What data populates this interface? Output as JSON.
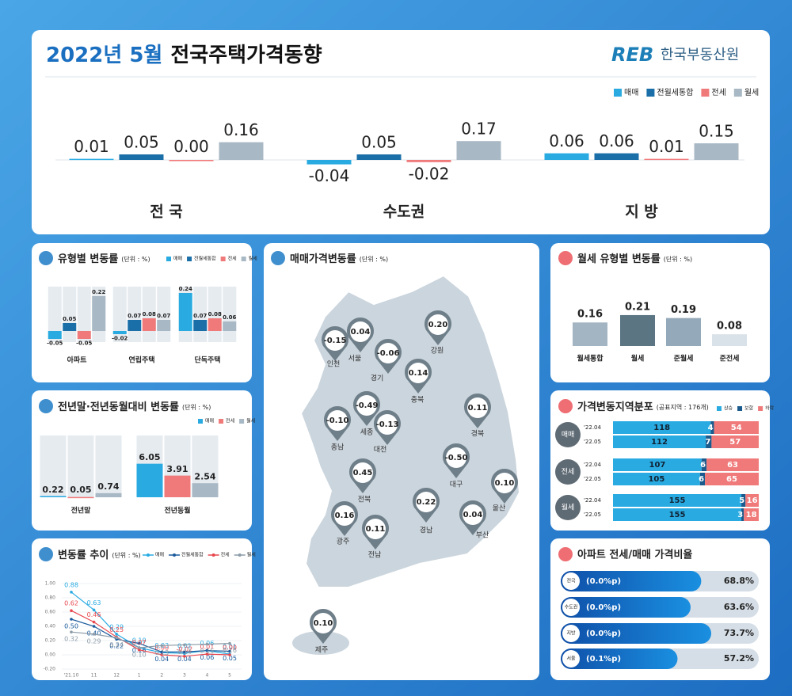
{
  "header": {
    "title_date": "2022년 5월",
    "title_main": "전국주택가격동향",
    "logo": "REB",
    "org": "한국부동산원"
  },
  "chart_data": [
    {
      "type": "bar",
      "categories": [
        "전 국",
        "수도권",
        "지 방"
      ],
      "series": [
        {
          "name": "매매",
          "color": "#29abe2",
          "values": [
            0.01,
            -0.04,
            0.06
          ],
          "value_labels": [
            "0.01",
            "-0.04",
            "0.06"
          ]
        },
        {
          "name": "전월세통합",
          "color": "#1a6fa8",
          "values": [
            0.05,
            0.05,
            0.06
          ],
          "value_labels": [
            "0.05",
            "0.05",
            "0.06"
          ]
        },
        {
          "name": "전세",
          "color": "#f07a7a",
          "values": [
            0.0,
            -0.02,
            0.01
          ],
          "value_labels": [
            "0.00",
            "-0.02",
            "0.01"
          ]
        },
        {
          "name": "월세",
          "color": "#a8b8c4",
          "values": [
            0.16,
            0.17,
            0.15
          ],
          "value_labels": [
            "0.16",
            "0.17",
            "0.15"
          ]
        }
      ]
    },
    {
      "type": "bar",
      "title": "유형별 변동률",
      "subtitle": "(단위 : %)",
      "categories": [
        "아파트",
        "연립주택",
        "단독주택"
      ],
      "series": [
        {
          "name": "매매",
          "color": "#29abe2",
          "values": [
            -0.05,
            -0.02,
            0.24
          ],
          "value_labels": [
            "-0.05",
            "-0.02",
            "0.24"
          ]
        },
        {
          "name": "전월세통합",
          "color": "#1a6fa8",
          "values": [
            0.05,
            0.07,
            0.07
          ],
          "value_labels": [
            "0.05",
            "0.07",
            "0.07"
          ]
        },
        {
          "name": "전세",
          "color": "#f07a7a",
          "values": [
            -0.05,
            0.08,
            0.08
          ],
          "value_labels": [
            "-0.05",
            "0.08",
            "0.08"
          ]
        },
        {
          "name": "월세",
          "color": "#a8b8c4",
          "values": [
            0.22,
            0.07,
            0.06
          ],
          "value_labels": [
            "0.22",
            "0.07",
            "0.06"
          ]
        }
      ]
    },
    {
      "type": "bar",
      "title": "전년말·전년동월대비 변동률",
      "subtitle": "(단위 : %)",
      "categories": [
        "전년말",
        "전년동월"
      ],
      "series": [
        {
          "name": "매매",
          "color": "#29abe2",
          "values": [
            0.22,
            6.05
          ],
          "value_labels": [
            "0.22",
            "6.05"
          ]
        },
        {
          "name": "전세",
          "color": "#f07a7a",
          "values": [
            0.05,
            3.91
          ],
          "value_labels": [
            "0.05",
            "3.91"
          ]
        },
        {
          "name": "월세",
          "color": "#a8b8c4",
          "values": [
            0.74,
            2.54
          ],
          "value_labels": [
            "0.74",
            "2.54"
          ]
        }
      ]
    },
    {
      "type": "line",
      "title": "변동률 추이",
      "subtitle": "(단위 : %)",
      "categories": [
        "'21.10",
        "11",
        "12",
        "1",
        "2",
        "3",
        "4",
        "5"
      ],
      "ylim": [
        -0.2,
        1.0
      ],
      "yticks": [
        {
          "value": 1.0,
          "label": "1.00"
        },
        {
          "value": 0.8,
          "label": "0.80"
        },
        {
          "value": 0.6,
          "label": "0.60"
        },
        {
          "value": 0.4,
          "label": "0.40"
        },
        {
          "value": 0.2,
          "label": "0.20"
        },
        {
          "value": 0,
          "label": "0.00"
        },
        {
          "value": -0.2,
          "label": "-0.20"
        }
      ],
      "series": [
        {
          "name": "매매",
          "color": "#29abe2",
          "values": [
            0.88,
            0.63,
            0.29,
            0.1,
            0.03,
            0.02,
            0.06,
            0.01
          ],
          "value_labels": [
            "0.88",
            "0.63",
            "0.29",
            "0.10",
            "0.03",
            "0.02",
            "0.06",
            "0.01"
          ]
        },
        {
          "name": "전월세통합",
          "color": "#1a5a9c",
          "values": [
            0.5,
            0.4,
            0.22,
            0.16,
            0.04,
            0.04,
            0.06,
            0.05
          ],
          "value_labels": [
            "0.50",
            "0.40",
            "0.22",
            "0.16",
            "0.04",
            "0.04",
            "0.06",
            "0.05"
          ]
        },
        {
          "name": "전세",
          "color": "#e8484f",
          "values": [
            0.62,
            0.46,
            0.25,
            0.07,
            0.0,
            -0.02,
            0.01,
            0.0
          ],
          "value_labels": [
            "0.62",
            "0.46",
            "0.25",
            "0.07",
            "0.00",
            "-0.02",
            "0.01",
            "0.00"
          ]
        },
        {
          "name": "월세",
          "color": "#8d9ca8",
          "values": [
            0.32,
            0.29,
            0.24,
            0.1,
            0.13,
            0.14,
            0.15,
            0.16
          ],
          "value_labels": [
            "0.32",
            "0.29",
            "0.24",
            "0.10",
            "0.13",
            "0.14",
            "0.15",
            "0.16"
          ]
        }
      ]
    },
    {
      "type": "map",
      "title": "매매가격변동률",
      "subtitle": "(단위 : %)",
      "categories": [
        "인천",
        "서울",
        "경기",
        "강원",
        "충북",
        "충남",
        "세종",
        "대전",
        "경북",
        "대구",
        "전북",
        "광주",
        "전남",
        "경남",
        "부산",
        "울산",
        "제주"
      ],
      "values": [
        -0.15,
        0.04,
        -0.06,
        0.2,
        0.14,
        -0.1,
        -0.49,
        -0.13,
        0.11,
        -0.5,
        0.45,
        0.16,
        0.11,
        0.22,
        0.04,
        0.1,
        0.1
      ],
      "value_labels": [
        "-0.15",
        "0.04",
        "-0.06",
        "0.20",
        "0.14",
        "-0.10",
        "-0.49",
        "-0.13",
        "0.11",
        "-0.50",
        "0.45",
        "0.16",
        "0.11",
        "0.22",
        "0.04",
        "0.10",
        "0.10"
      ]
    },
    {
      "type": "bar",
      "title": "월세 유형별 변동률",
      "subtitle": "(단위 : %)",
      "categories": [
        "월세통합",
        "월세",
        "준월세",
        "준전세"
      ],
      "values": [
        0.16,
        0.21,
        0.19,
        0.08
      ],
      "value_labels": [
        "0.16",
        "0.21",
        "0.19",
        "0.08"
      ],
      "colors": [
        "#a3b5c3",
        "#5b7583",
        "#94aaba",
        "#d9e2e9"
      ]
    },
    {
      "type": "stacked_bar",
      "title": "가격변동지역분포",
      "subtitle": "(공표지역 : 176개)",
      "groups": [
        "매매",
        "전세",
        "월세"
      ],
      "categories": [
        "'22.04",
        "'22.05",
        "'22.04",
        "'22.05",
        "'22.04",
        "'22.05"
      ],
      "series": [
        {
          "name": "상승",
          "color": "#29abe2",
          "values": [
            118,
            112,
            107,
            105,
            155,
            155
          ]
        },
        {
          "name": "보합",
          "color": "#1a5a8c",
          "values": [
            4,
            7,
            6,
            6,
            5,
            3
          ]
        },
        {
          "name": "하락",
          "color": "#f07a7a",
          "values": [
            54,
            57,
            63,
            65,
            16,
            18
          ]
        }
      ]
    },
    {
      "type": "progress",
      "title": "아파트 전세/매매 가격비율",
      "categories": [
        "전국",
        "수도권",
        "지방",
        "서울"
      ],
      "changes": [
        "(0.0%p)",
        "(0.0%p)",
        "(0.0%p)",
        "(0.1%p)"
      ],
      "values": [
        68.8,
        63.6,
        73.7,
        57.2
      ],
      "value_labels": [
        "68.8%",
        "63.6%",
        "73.7%",
        "57.2%"
      ]
    }
  ]
}
